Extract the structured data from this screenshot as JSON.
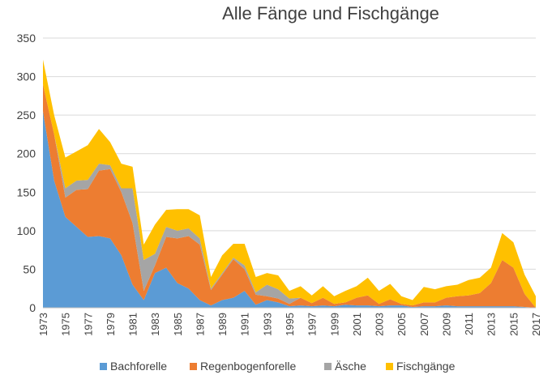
{
  "chart_data": {
    "type": "area",
    "stacked": true,
    "title": "Alle Fänge und Fischgänge",
    "xlabel": "",
    "ylabel": "",
    "ylim": [
      0,
      350
    ],
    "yticks": [
      0,
      50,
      100,
      150,
      200,
      250,
      300,
      350
    ],
    "x": [
      1973,
      1974,
      1975,
      1976,
      1977,
      1978,
      1979,
      1980,
      1981,
      1982,
      1983,
      1984,
      1985,
      1986,
      1987,
      1988,
      1989,
      1990,
      1991,
      1992,
      1993,
      1994,
      1995,
      1996,
      1997,
      1998,
      1999,
      2000,
      2001,
      2002,
      2003,
      2004,
      2005,
      2006,
      2007,
      2008,
      2009,
      2010,
      2011,
      2012,
      2013,
      2014,
      2015,
      2016,
      2017
    ],
    "xtick_labels": [
      "1973",
      "1975",
      "1977",
      "1979",
      "1981",
      "1983",
      "1985",
      "1987",
      "1989",
      "1991",
      "1993",
      "1995",
      "1997",
      "1999",
      "2001",
      "2003",
      "2005",
      "2007",
      "2009",
      "2011",
      "2013",
      "2015",
      "2017"
    ],
    "grid": true,
    "legend_position": "bottom",
    "series": [
      {
        "name": "Bachforelle",
        "color": "#5B9BD5",
        "values": [
          255,
          165,
          118,
          105,
          92,
          93,
          90,
          68,
          30,
          10,
          45,
          52,
          32,
          25,
          10,
          3,
          10,
          13,
          22,
          4,
          10,
          7,
          2,
          3,
          2,
          3,
          2,
          4,
          3,
          3,
          2,
          3,
          3,
          1,
          2,
          2,
          3,
          2,
          2,
          2,
          2,
          2,
          2,
          1,
          0
        ]
      },
      {
        "name": "Regenbogenforelle",
        "color": "#ED7D31",
        "values": [
          35,
          60,
          25,
          48,
          62,
          85,
          90,
          82,
          80,
          12,
          10,
          40,
          58,
          68,
          72,
          20,
          33,
          50,
          28,
          13,
          5,
          5,
          3,
          10,
          4,
          10,
          3,
          3,
          10,
          13,
          3,
          8,
          2,
          2,
          5,
          5,
          10,
          13,
          14,
          17,
          30,
          60,
          50,
          17,
          0
        ]
      },
      {
        "name": "Äsche",
        "color": "#A5A5A5",
        "values": [
          0,
          0,
          12,
          12,
          12,
          9,
          5,
          5,
          45,
          40,
          15,
          13,
          10,
          10,
          8,
          2,
          2,
          2,
          5,
          3,
          15,
          12,
          7,
          0,
          0,
          0,
          0,
          0,
          0,
          0,
          0,
          0,
          0,
          0,
          0,
          0,
          0,
          0,
          0,
          0,
          0,
          0,
          0,
          0,
          0
        ]
      },
      {
        "name": "Fischgänge",
        "color": "#FFC000",
        "values": [
          32,
          25,
          40,
          38,
          45,
          45,
          30,
          32,
          28,
          20,
          38,
          22,
          28,
          25,
          30,
          15,
          23,
          18,
          28,
          20,
          15,
          18,
          10,
          15,
          10,
          15,
          10,
          15,
          15,
          23,
          17,
          20,
          10,
          7,
          20,
          17,
          15,
          15,
          20,
          20,
          20,
          35,
          33,
          25,
          15
        ]
      }
    ]
  }
}
